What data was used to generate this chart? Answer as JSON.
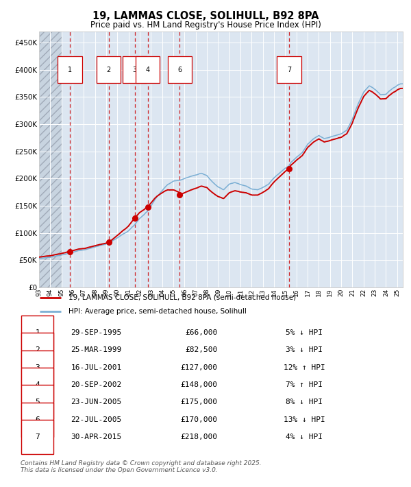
{
  "title": "19, LAMMAS CLOSE, SOLIHULL, B92 8PA",
  "subtitle": "Price paid vs. HM Land Registry's House Price Index (HPI)",
  "title_fontsize": 11,
  "subtitle_fontsize": 9,
  "ylim": [
    0,
    470000
  ],
  "yticks": [
    0,
    50000,
    100000,
    150000,
    200000,
    250000,
    300000,
    350000,
    400000,
    450000
  ],
  "ytick_labels": [
    "£0",
    "£50K",
    "£100K",
    "£150K",
    "£200K",
    "£250K",
    "£300K",
    "£350K",
    "£400K",
    "£450K"
  ],
  "hpi_color": "#7bafd4",
  "price_color": "#cc0000",
  "plot_bg_color": "#dce6f1",
  "legend_label_price": "19, LAMMAS CLOSE, SOLIHULL, B92 8PA (semi-detached house)",
  "legend_label_hpi": "HPI: Average price, semi-detached house, Solihull",
  "footer_text": "Contains HM Land Registry data © Crown copyright and database right 2025.\nThis data is licensed under the Open Government Licence v3.0.",
  "transactions": [
    {
      "num": 1,
      "date": "29-SEP-1995",
      "price": 66000,
      "hpi_rel": "5% ↓ HPI",
      "year": 1995.75,
      "show_vline": true
    },
    {
      "num": 2,
      "date": "25-MAR-1999",
      "price": 82500,
      "hpi_rel": "3% ↓ HPI",
      "year": 1999.23,
      "show_vline": true
    },
    {
      "num": 3,
      "date": "16-JUL-2001",
      "price": 127000,
      "hpi_rel": "12% ↑ HPI",
      "year": 2001.54,
      "show_vline": true
    },
    {
      "num": 4,
      "date": "20-SEP-2002",
      "price": 148000,
      "hpi_rel": "7% ↑ HPI",
      "year": 2002.72,
      "show_vline": true
    },
    {
      "num": 5,
      "date": "23-JUN-2005",
      "price": 175000,
      "hpi_rel": "8% ↓ HPI",
      "year": 2005.48,
      "show_vline": false
    },
    {
      "num": 6,
      "date": "22-JUL-2005",
      "price": 170000,
      "hpi_rel": "13% ↓ HPI",
      "year": 2005.56,
      "show_vline": true
    },
    {
      "num": 7,
      "date": "30-APR-2015",
      "price": 218000,
      "hpi_rel": "4% ↓ HPI",
      "year": 2015.33,
      "show_vline": true
    }
  ],
  "hatch_end_year": 1995.0,
  "xmin": 1993.0,
  "xmax": 2025.5,
  "xtick_years": [
    1993,
    1994,
    1995,
    1996,
    1997,
    1998,
    1999,
    2000,
    2001,
    2002,
    2003,
    2004,
    2005,
    2006,
    2007,
    2008,
    2009,
    2010,
    2011,
    2012,
    2013,
    2014,
    2015,
    2016,
    2017,
    2018,
    2019,
    2020,
    2021,
    2022,
    2023,
    2024,
    2025
  ]
}
